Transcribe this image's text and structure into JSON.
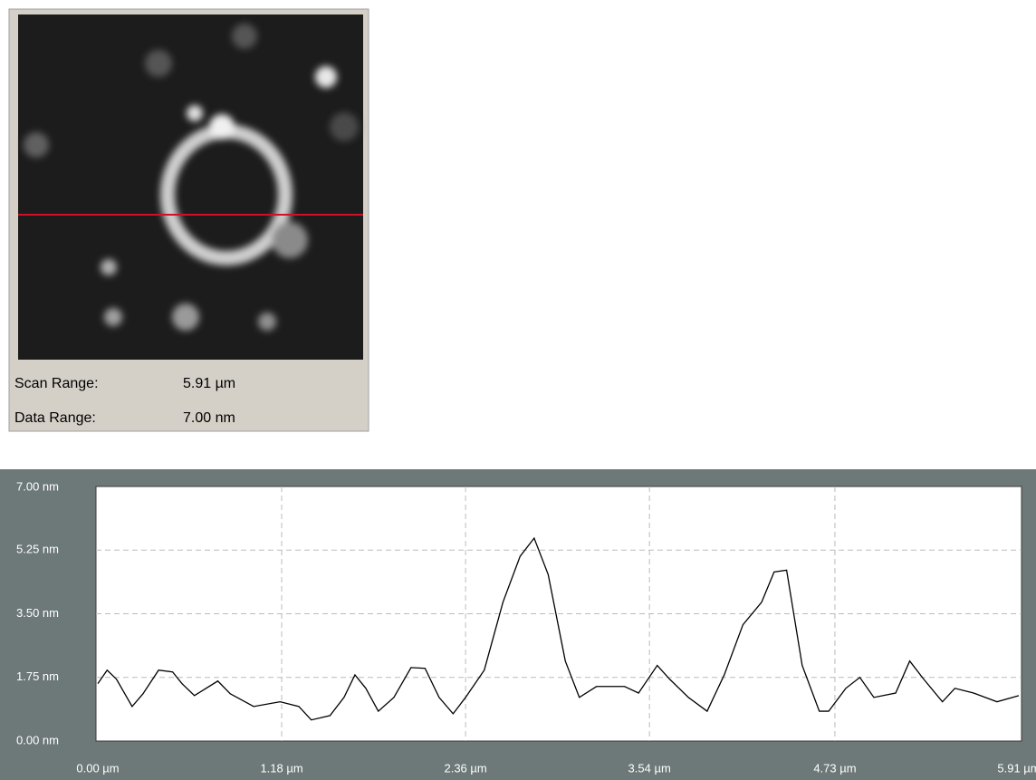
{
  "scan_info": {
    "rows": [
      [
        "Scan Range:",
        "5.91 µm"
      ],
      [
        "Data Range:",
        "7.00 nm"
      ]
    ]
  },
  "chart_data": {
    "type": "line",
    "x": [
      0,
      0.06,
      0.12,
      0.22,
      0.29,
      0.39,
      0.48,
      0.54,
      0.62,
      0.77,
      0.85,
      1.0,
      1.17,
      1.29,
      1.37,
      1.49,
      1.58,
      1.65,
      1.72,
      1.8,
      1.9,
      2.01,
      2.1,
      2.19,
      2.28,
      2.36,
      2.48,
      2.6,
      2.71,
      2.8,
      2.89,
      3.0,
      3.09,
      3.2,
      3.38,
      3.47,
      3.59,
      3.67,
      3.79,
      3.91,
      4.02,
      4.14,
      4.26,
      4.34,
      4.42,
      4.52,
      4.63,
      4.69,
      4.8,
      4.89,
      4.98,
      5.12,
      5.21,
      5.3,
      5.42,
      5.5,
      5.62,
      5.77,
      5.91
    ],
    "series": [
      {
        "color": "#000000",
        "values": [
          1.58,
          1.95,
          1.7,
          0.95,
          1.3,
          1.95,
          1.9,
          1.58,
          1.25,
          1.65,
          1.3,
          0.95,
          1.08,
          0.95,
          0.58,
          0.7,
          1.2,
          1.82,
          1.45,
          0.82,
          1.2,
          2.02,
          2.0,
          1.2,
          0.75,
          1.2,
          1.95,
          3.82,
          5.08,
          5.58,
          4.58,
          2.2,
          1.2,
          1.5,
          1.5,
          1.32,
          2.08,
          1.7,
          1.2,
          0.82,
          1.82,
          3.2,
          3.82,
          4.65,
          4.7,
          2.08,
          0.82,
          0.82,
          1.45,
          1.75,
          1.2,
          1.32,
          2.2,
          1.7,
          1.08,
          1.45,
          1.32,
          1.08,
          1.25
        ]
      }
    ],
    "xlim": [
      0,
      5.91
    ],
    "ylim": [
      0,
      7
    ],
    "xticks": [
      {
        "value": 0,
        "label": "0.00 µm"
      },
      {
        "value": 1.18,
        "label": "1.18 µm"
      },
      {
        "value": 2.36,
        "label": "2.36 µm"
      },
      {
        "value": 3.54,
        "label": "3.54 µm"
      },
      {
        "value": 4.73,
        "label": "4.73 µm"
      },
      {
        "value": 5.91,
        "label": "5.91 µm"
      }
    ],
    "yticks": [
      {
        "value": 0,
        "label": "0.00 nm"
      },
      {
        "value": 1.75,
        "label": "1.75 nm"
      },
      {
        "value": 3.5,
        "label": "3.50 nm"
      },
      {
        "value": 5.25,
        "label": "5.25 nm"
      },
      {
        "value": 7,
        "label": "7.00 nm"
      }
    ],
    "grid": true
  }
}
